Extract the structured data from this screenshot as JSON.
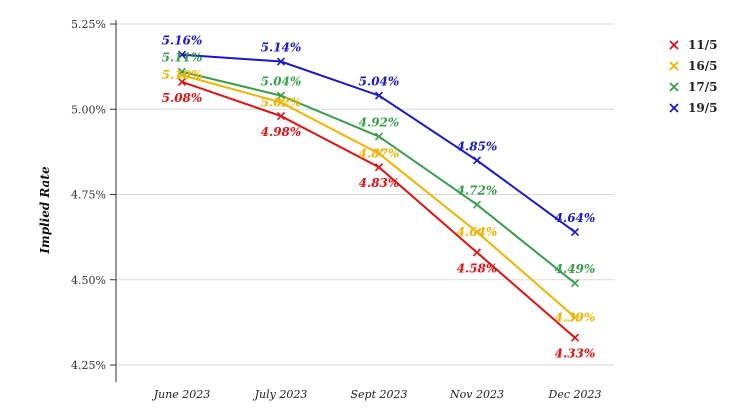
{
  "chart_data": {
    "type": "line",
    "categories": [
      "June 2023",
      "July 2023",
      "Sept 2023",
      "Nov 2023",
      "Dec 2023"
    ],
    "ylabel": "Implied Rate",
    "xlabel": "",
    "ylim": [
      4.25,
      5.25
    ],
    "yticks": [
      "4.25%",
      "4.50%",
      "4.75%",
      "5.00%",
      "5.25%"
    ],
    "ytick_values": [
      4.25,
      4.5,
      4.75,
      5.0,
      5.25
    ],
    "grid": "horizontal",
    "legend_position": "top-right",
    "marker": "x",
    "series": [
      {
        "name": "11/5",
        "color": "#e01010",
        "values": [
          5.08,
          4.98,
          4.83,
          4.58,
          4.33
        ],
        "labels": [
          "5.08%",
          "4.98%",
          "4.83%",
          "4.58%",
          "4.33%"
        ],
        "label_side": [
          "below",
          "below",
          "below",
          "below",
          "below"
        ]
      },
      {
        "name": "16/5",
        "color": "#f0b400",
        "values": [
          5.1,
          5.02,
          4.87,
          4.64,
          4.39
        ],
        "labels": [
          "5.10%",
          "5.02%",
          "4.87%",
          "4.64%",
          "4.39%"
        ],
        "label_side": [
          "on",
          "on",
          "on",
          "on",
          "on"
        ]
      },
      {
        "name": "17/5",
        "color": "#3a9d4a",
        "values": [
          5.11,
          5.04,
          4.92,
          4.72,
          4.49
        ],
        "labels": [
          "5.11%",
          "5.04%",
          "4.92%",
          "4.72%",
          "4.49%"
        ],
        "label_side": [
          "above",
          "above",
          "above",
          "above",
          "above"
        ]
      },
      {
        "name": "19/5",
        "color": "#1818c8",
        "values": [
          5.16,
          5.14,
          5.04,
          4.85,
          4.64
        ],
        "labels": [
          "5.16%",
          "5.14%",
          "5.04%",
          "4.85%",
          "4.64%"
        ],
        "label_side": [
          "above",
          "above",
          "above",
          "above",
          "above"
        ]
      }
    ]
  }
}
